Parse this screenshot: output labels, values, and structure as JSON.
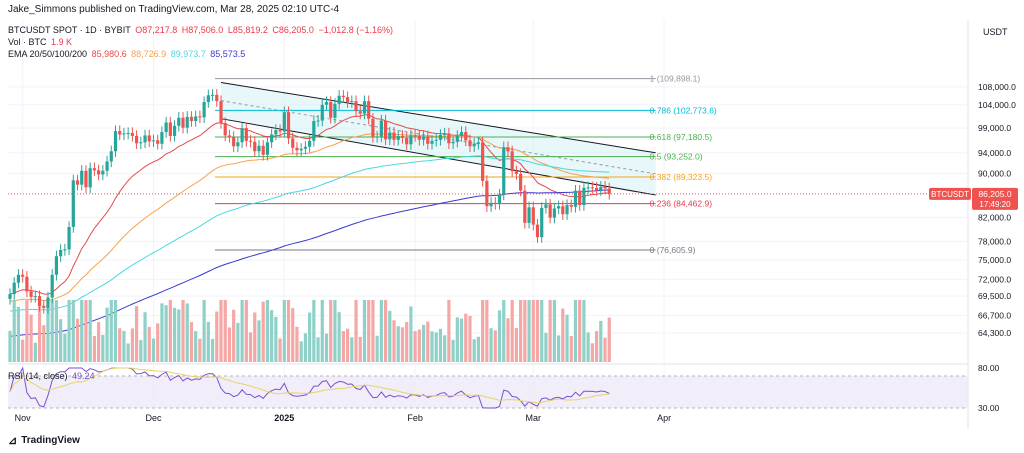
{
  "header": {
    "published": "Jake_Simmons published on TradingView.com, Mar 28, 2025 02:10 UTC-4"
  },
  "symbol_line": {
    "symbol": "BTCUSDT SPOT · 1D · BYBIT",
    "open": "O87,217.8",
    "high": "H87,506.0",
    "low": "L85,819.2",
    "close": "C86,205.0",
    "change": "−1,012.8 (−1.16%)"
  },
  "vol_line": {
    "label": "Vol · BTC",
    "value": "1.9 K"
  },
  "ema_line": {
    "label": "EMA 20/50/100/200",
    "values": [
      "85,980.6",
      "88,726.9",
      "89,973.7",
      "85,573.5"
    ],
    "colors": [
      "#e54a4a",
      "#f7a24b",
      "#4ad8e0",
      "#3a3ad0"
    ]
  },
  "rsi_label": "RSI (14, close)",
  "rsi_value": "49.24",
  "price_axis_title": "USDT",
  "logo": "TradingView",
  "colors": {
    "up": "#26a69a",
    "down": "#ef5350",
    "vol_up": "#8fd1c8",
    "vol_down": "#f5a7a5",
    "rsi": "#7b4fd0",
    "rsi_ma": "#e5d36a"
  },
  "chart_data": {
    "type": "candlestick",
    "title": "BTCUSDT SPOT · 1D · BYBIT",
    "ylabel": "USDT",
    "y_scale": "log",
    "ylim": [
      60500,
      115500
    ],
    "price_ticks": [
      "108,000.0",
      "104,000.0",
      "99,000.0",
      "94,000.0",
      "90,000.0",
      "82,000.0",
      "78,000.0",
      "75,000.0",
      "72,000.0",
      "69,500.0",
      "66,700.0",
      "64,300.0"
    ],
    "x_ticks": [
      "Nov",
      "Dec",
      "2025",
      "Feb",
      "Mar",
      "Apr"
    ],
    "last_price": {
      "label": "BTCUSDT",
      "price": "86,205.0",
      "countdown": "17:49:20"
    },
    "fib_levels": [
      {
        "label": "1 (109,898.1)",
        "price": 109898.1,
        "color": "#9598a1"
      },
      {
        "label": "0.786 (102,773.6)",
        "price": 102773.6,
        "color": "#00bcd4"
      },
      {
        "label": "0.618 (97,180.5)",
        "price": 97180.5,
        "color": "#4caf50"
      },
      {
        "label": "0.5 (93,252.0)",
        "price": 93252.0,
        "color": "#4caf50"
      },
      {
        "label": "0.382 (89,323.5)",
        "price": 89323.5,
        "color": "#f7a21b"
      },
      {
        "label": "0.236 (84,462.9)",
        "price": 84462.9,
        "color": "#e53950"
      },
      {
        "label": "0 (76,605.9)",
        "price": 76605.9,
        "color": "#787b86"
      }
    ],
    "channel": {
      "upper": [
        [
          "2024-12-17",
          109000
        ],
        [
          "2025-03-30",
          94000
        ]
      ],
      "lower": [
        [
          "2024-12-17",
          101000
        ],
        [
          "2025-03-30",
          86000
        ]
      ]
    },
    "series": {
      "close": [
        {
          "date": "2024-10-28",
          "values": [
            69800,
            71500,
            72700,
            72400,
            70200,
            69400,
            69500,
            68100,
            67800,
            69300,
            72700,
            75600,
            76600,
            76700,
            80400,
            88700,
            87900,
            90500,
            87400,
            91000,
            90600,
            89800,
            90500,
            92300,
            94300,
            98400,
            97700,
            97900,
            98000,
            97400,
            95900,
            96100,
            97500,
            96300,
            96500,
            95800,
            98200,
            100200,
            97400,
            99500,
            101200,
            99100,
            101400,
            100500,
            101500,
            101300,
            104600,
            106100,
            106200,
            104800,
            100100,
            97500,
            97200,
            95300,
            96100,
            99000,
            96400,
            96200,
            94300,
            95400,
            93600,
            96100,
            97700,
            98600,
            98300,
            102400,
            96900,
            95000,
            94500,
            94800,
            95200,
            96400,
            100500,
            100600,
            104000,
            104600,
            101200,
            104200,
            106000,
            105700,
            104600,
            104800,
            102600,
            102100,
            104800,
            101000,
            97200,
            97300,
            100600,
            96700,
            98100,
            96600,
            97400,
            97000,
            95700,
            97500,
            97400,
            96600,
            97300,
            95800,
            96400,
            96600,
            97600,
            97900,
            95900,
            96200,
            97400,
            98200,
            96500,
            95300,
            95800,
            96100,
            88600,
            84000,
            84600,
            84400,
            86100,
            95100,
            94300,
            90400,
            89900,
            86800,
            81100,
            83800,
            80800,
            78700,
            83700,
            84300,
            82000,
            83600,
            84000,
            82600,
            84200,
            83900,
            86800,
            84200,
            87300,
            87400,
            87300,
            86900,
            87500,
            87200,
            86200
          ]
        }
      ]
    },
    "rsi_range": [
      30,
      80
    ],
    "notes": ""
  }
}
